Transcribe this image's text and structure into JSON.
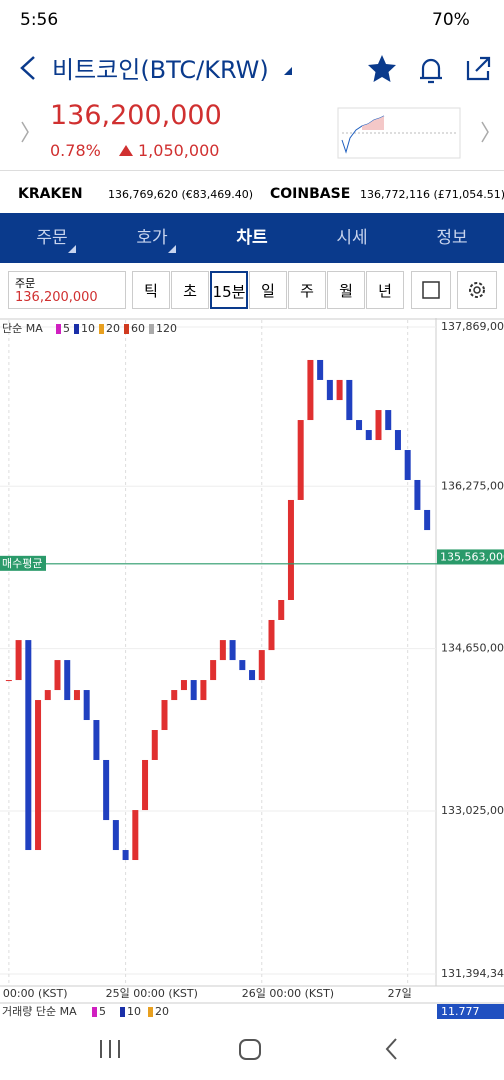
{
  "status_bar": {
    "time": "5:56",
    "battery": "70%"
  },
  "header": {
    "title": "비트코인(BTC/KRW)"
  },
  "price": {
    "current": "136,200,000",
    "change_rate": "0.78%",
    "change": "1,050,000"
  },
  "exchanges": [
    {
      "name": "KRAKEN",
      "price": "136,769,620 (€83,469.40)"
    },
    {
      "name": "COINBASE",
      "price": "136,772,116 (£71,054.51)"
    }
  ],
  "tabs": [
    "주문",
    "호가",
    "차트",
    "시세",
    "정보"
  ],
  "order_box": {
    "label": "주문",
    "price": "136,200,000"
  },
  "intervals": [
    "틱",
    "초",
    "15분",
    "일",
    "주",
    "월",
    "년"
  ],
  "chart_data": {
    "type": "candlestick",
    "legend_label": "단순 MA",
    "ma": [
      {
        "period": 5,
        "color": "#d020c0"
      },
      {
        "period": 10,
        "color": "#1a2fa8"
      },
      {
        "period": 20,
        "color": "#e8a020"
      },
      {
        "period": 60,
        "color": "#d03a20"
      },
      {
        "period": 120,
        "color": "#aaaaaa"
      }
    ],
    "up_color": "#e03030",
    "down_color": "#2040c0",
    "categories": [
      "00:00 (KST)",
      null,
      null,
      null,
      null,
      null,
      null,
      null,
      null,
      null,
      null,
      null,
      "25일 00:00 (KST)",
      null,
      null,
      null,
      null,
      null,
      null,
      null,
      null,
      null,
      null,
      null,
      null,
      null,
      "26일 00:00 (KST)",
      null,
      null,
      null,
      null,
      null,
      null,
      null,
      null,
      null,
      null,
      null,
      null,
      null,
      null,
      "27일",
      null,
      null
    ],
    "values": [
      134336000,
      134736000,
      132635000,
      134136000,
      134236000,
      134536000,
      134136000,
      134236000,
      133936000,
      133536000,
      132935000,
      132635000,
      132535000,
      133035000,
      133536000,
      133836000,
      134136000,
      134236000,
      134336000,
      134136000,
      134336000,
      134536000,
      134736000,
      134536000,
      134436000,
      134336000,
      134636000,
      134937000,
      135137000,
      136138000,
      136938000,
      137539000,
      137339000,
      137138000,
      137339000,
      136938000,
      136838000,
      136738000,
      137038000,
      136838000,
      136638000,
      136338000,
      136038000,
      135837000
    ],
    "ylim": [
      131394342,
      137869000
    ],
    "yticks": [
      {
        "value": 131394342,
        "label": "131,394,342"
      },
      {
        "value": 133025000,
        "label": "133,025,000"
      },
      {
        "value": 134650000,
        "label": "134,650,000"
      },
      {
        "value": 136275000,
        "label": "136,275,000"
      },
      {
        "value": 137869000,
        "label": "137,869,000"
      }
    ],
    "current_price": {
      "value": 135563000,
      "label": "135,563,000"
    },
    "avg_buy": {
      "value": 135499000,
      "label": "매수평균"
    },
    "volume_legend": {
      "label": "거래량 단순 MA",
      "periods": [
        5,
        10,
        20
      ]
    },
    "volume_value": "11.777"
  }
}
